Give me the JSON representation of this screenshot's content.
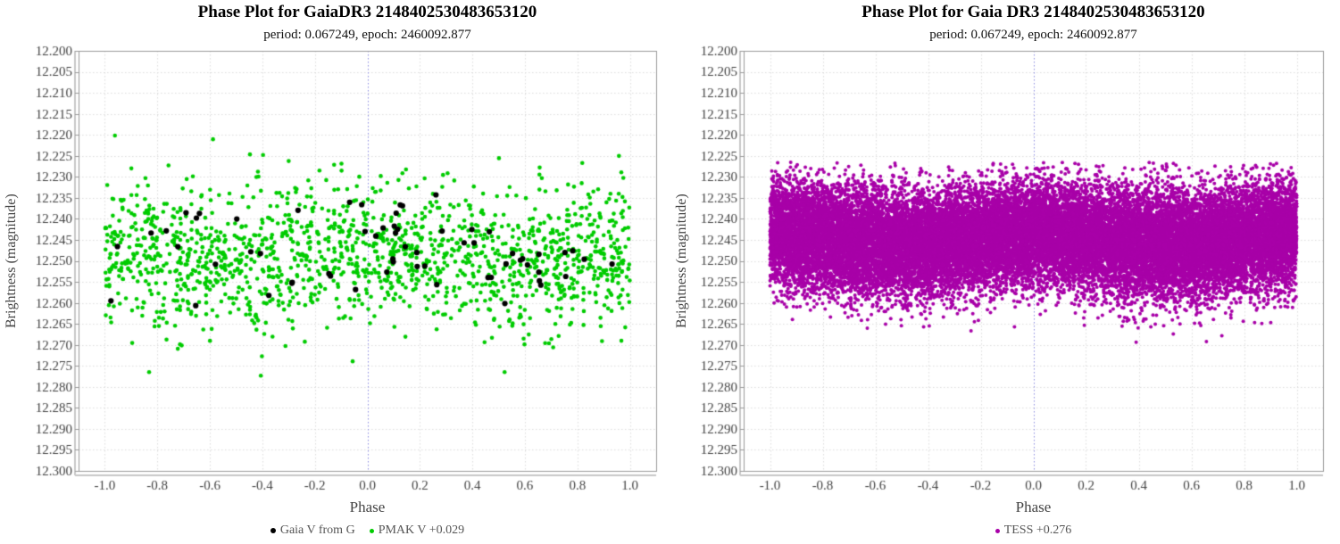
{
  "page": {
    "background": "#ffffff"
  },
  "chart_data": [
    {
      "type": "scatter",
      "title": "Phase Plot for GaiaDR3 2148402530483653120",
      "subtitle": "period: 0.067249, epoch: 2460092.877",
      "xlabel": "Phase",
      "ylabel": "Brightness (magnitude)",
      "xlim": [
        -1.1,
        1.1
      ],
      "ylim_top": 12.2,
      "ylim_bottom": 12.3,
      "y_axis_inverted_magnitude": true,
      "xticks": [
        -1.0,
        -0.8,
        -0.6,
        -0.4,
        -0.2,
        0.0,
        0.2,
        0.4,
        0.6,
        0.8,
        1.0
      ],
      "yticks": [
        12.2,
        12.205,
        12.21,
        12.215,
        12.22,
        12.225,
        12.23,
        12.235,
        12.24,
        12.245,
        12.25,
        12.255,
        12.26,
        12.265,
        12.27,
        12.275,
        12.28,
        12.285,
        12.29,
        12.295,
        12.3
      ],
      "x_tick_decimals": 1,
      "y_tick_decimals": 3,
      "grid_on": true,
      "grid_color": "#dcdcdc",
      "zero_grid_color": "#8a8ae0",
      "frame_color": "#9a9a9a",
      "spine_color": "#c8c8c8",
      "tick_label_color": "#444444",
      "legend_position": "bottom-center",
      "series": [
        {
          "name": "PMAK V +0.029",
          "color": "#00cc00",
          "n": 1550,
          "radius_px": 2.3,
          "seed": 11,
          "x_min": -1.0,
          "x_max": 1.0,
          "y_mean": 12.249,
          "y_sd": 0.0085,
          "y_clip_min": 12.219,
          "y_clip_max": 12.2815,
          "wave_amp": 0.0018
        },
        {
          "name": "Gaia V from G",
          "color": "#000000",
          "n": 62,
          "radius_px": 3.1,
          "seed": 7,
          "x_min": -1.0,
          "x_max": 1.0,
          "y_mean": 12.247,
          "y_sd": 0.006,
          "y_clip_min": 12.232,
          "y_clip_max": 12.2625,
          "wave_amp": 0.0015
        }
      ],
      "legend": [
        {
          "label": "Gaia V from G",
          "color": "#000000"
        },
        {
          "label": "PMAK V +0.029",
          "color": "#00cc00"
        }
      ]
    },
    {
      "type": "scatter",
      "title": "Phase Plot for Gaia DR3 2148402530483653120",
      "subtitle": "period: 0.067249, epoch: 2460092.877",
      "xlabel": "Phase",
      "ylabel": "Brightness (magnitude)",
      "xlim": [
        -1.1,
        1.1
      ],
      "ylim_top": 12.2,
      "ylim_bottom": 12.3,
      "y_axis_inverted_magnitude": true,
      "xticks": [
        -1.0,
        -0.8,
        -0.6,
        -0.4,
        -0.2,
        0.0,
        0.2,
        0.4,
        0.6,
        0.8,
        1.0
      ],
      "yticks": [
        12.2,
        12.205,
        12.21,
        12.215,
        12.22,
        12.225,
        12.23,
        12.235,
        12.24,
        12.245,
        12.25,
        12.255,
        12.26,
        12.265,
        12.27,
        12.275,
        12.28,
        12.285,
        12.29,
        12.295,
        12.3
      ],
      "x_tick_decimals": 1,
      "y_tick_decimals": 3,
      "grid_on": true,
      "grid_color": "#dcdcdc",
      "zero_grid_color": "#8a8ae0",
      "frame_color": "#9a9a9a",
      "spine_color": "#c8c8c8",
      "tick_label_color": "#444444",
      "legend_position": "bottom-center",
      "series": [
        {
          "name": "TESS +0.276",
          "color": "#a800a8",
          "n": 26000,
          "radius_px": 2.0,
          "seed": 23,
          "x_min": -1.0,
          "x_max": 1.0,
          "y_mean": 12.2448,
          "y_sd": 0.0063,
          "y_clip_min": 12.2265,
          "y_clip_max": 12.2695,
          "wave_amp": 0.0012
        }
      ],
      "legend": [
        {
          "label": "TESS +0.276",
          "color": "#a800a8"
        }
      ]
    }
  ]
}
